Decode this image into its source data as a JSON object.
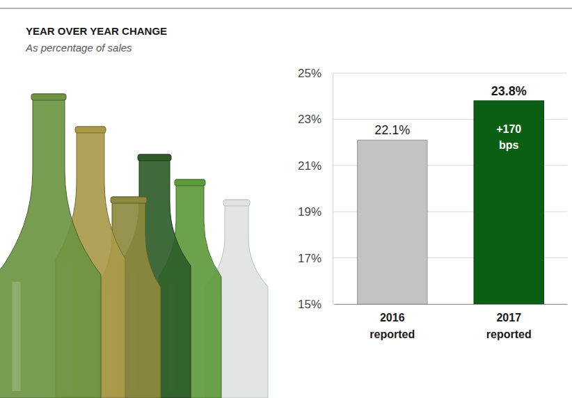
{
  "chart_data": {
    "type": "bar",
    "title": "YEAR OVER YEAR CHANGE",
    "subtitle": "As percentage of sales",
    "categories": [
      "2016 reported",
      "2017 reported"
    ],
    "values": [
      22.1,
      23.8
    ],
    "value_labels": [
      "22.1%",
      "23.8%"
    ],
    "colors": [
      "#c3c3c3",
      "#0b5f12"
    ],
    "ylim": [
      15,
      25
    ],
    "yticks": [
      {
        "value": 15,
        "label": "15%"
      },
      {
        "value": 17,
        "label": "17%"
      },
      {
        "value": 19,
        "label": "19%"
      },
      {
        "value": 21,
        "label": "21%"
      },
      {
        "value": 23,
        "label": "23%"
      },
      {
        "value": 25,
        "label": "25%"
      }
    ],
    "grid": true,
    "data_labels": true,
    "annotations": [
      {
        "text": "+170 bps",
        "category": "2017 reported"
      }
    ]
  }
}
